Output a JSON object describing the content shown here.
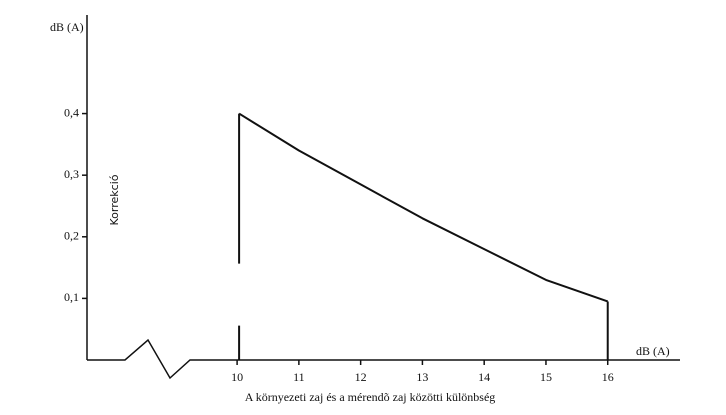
{
  "chart_data": {
    "type": "line",
    "y_axis_unit": "dB (A)",
    "y_label": "Korrekció",
    "x_axis_unit": "dB (A)",
    "x_label": "A környezeti zaj és a mérendõ zaj közötti különbség",
    "x": [
      10,
      11,
      12,
      13,
      14,
      15,
      16
    ],
    "series": [
      {
        "color": "#111111",
        "values": [
          0.4,
          0.34,
          0.285,
          0.23,
          0.18,
          0.13,
          0.095
        ]
      }
    ],
    "xlim": [
      7.57,
      17.17
    ],
    "xticks": [
      10,
      11,
      12,
      13,
      14,
      15,
      16
    ],
    "ylim": [
      0,
      0.56
    ],
    "yticks": [
      {
        "value": 0.1,
        "label": "0,1"
      },
      {
        "value": 0.2,
        "label": "0,2"
      },
      {
        "value": 0.3,
        "label": "0,3"
      },
      {
        "value": 0.4,
        "label": "0,4"
      }
    ]
  }
}
